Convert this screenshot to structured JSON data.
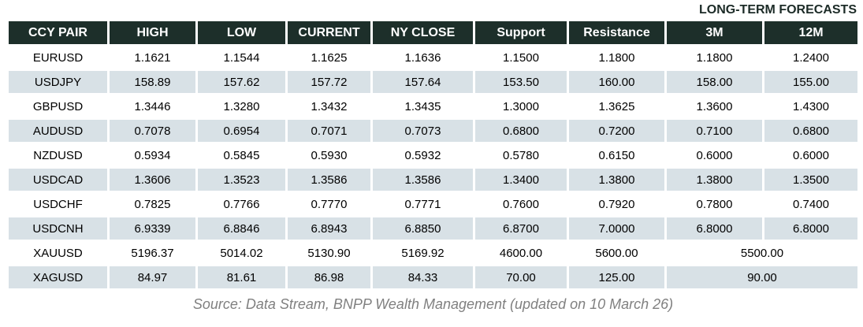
{
  "page": {
    "forecast_heading": "LONG-TERM FORECASTS",
    "source_note": "Source: Data Stream, BNPP Wealth Management (updated on 10 March 26)"
  },
  "colors": {
    "header_bg": "#1d2f2a",
    "alt_row_bg": "#d8e1e6",
    "heading_text": "#1c2b27",
    "source_text": "#808080"
  },
  "chart_data": {
    "type": "table",
    "title": "LONG-TERM FORECASTS",
    "columns": [
      "CCY PAIR",
      "HIGH",
      "LOW",
      "CURRENT",
      "NY CLOSE",
      "Support",
      "Resistance",
      "3M",
      "12M"
    ],
    "rows": [
      {
        "pair": "EURUSD",
        "high": "1.1621",
        "low": "1.1544",
        "current": "1.1625",
        "ny_close": "1.1636",
        "support": "1.1500",
        "resistance": "1.1800",
        "m3": "1.1800",
        "m12": "1.2400"
      },
      {
        "pair": "USDJPY",
        "high": "158.89",
        "low": "157.62",
        "current": "157.72",
        "ny_close": "157.64",
        "support": "153.50",
        "resistance": "160.00",
        "m3": "158.00",
        "m12": "155.00"
      },
      {
        "pair": "GBPUSD",
        "high": "1.3446",
        "low": "1.3280",
        "current": "1.3432",
        "ny_close": "1.3435",
        "support": "1.3000",
        "resistance": "1.3625",
        "m3": "1.3600",
        "m12": "1.4300"
      },
      {
        "pair": "AUDUSD",
        "high": "0.7078",
        "low": "0.6954",
        "current": "0.7071",
        "ny_close": "0.7073",
        "support": "0.6800",
        "resistance": "0.7200",
        "m3": "0.7100",
        "m12": "0.6800"
      },
      {
        "pair": "NZDUSD",
        "high": "0.5934",
        "low": "0.5845",
        "current": "0.5930",
        "ny_close": "0.5932",
        "support": "0.5780",
        "resistance": "0.6150",
        "m3": "0.6000",
        "m12": "0.6000"
      },
      {
        "pair": "USDCAD",
        "high": "1.3606",
        "low": "1.3523",
        "current": "1.3586",
        "ny_close": "1.3586",
        "support": "1.3400",
        "resistance": "1.3800",
        "m3": "1.3800",
        "m12": "1.3500"
      },
      {
        "pair": "USDCHF",
        "high": "0.7825",
        "low": "0.7766",
        "current": "0.7770",
        "ny_close": "0.7771",
        "support": "0.7600",
        "resistance": "0.7920",
        "m3": "0.7800",
        "m12": "0.7400"
      },
      {
        "pair": "USDCNH",
        "high": "6.9339",
        "low": "6.8846",
        "current": "6.8943",
        "ny_close": "6.8850",
        "support": "6.8700",
        "resistance": "7.0000",
        "m3": "6.8000",
        "m12": "6.8000"
      },
      {
        "pair": "XAUUSD",
        "high": "5196.37",
        "low": "5014.02",
        "current": "5130.90",
        "ny_close": "5169.92",
        "support": "4600.00",
        "resistance": "5600.00",
        "forecast_merged": "5500.00"
      },
      {
        "pair": "XAGUSD",
        "high": "84.97",
        "low": "81.61",
        "current": "86.98",
        "ny_close": "84.33",
        "support": "70.00",
        "resistance": "125.00",
        "forecast_merged": "90.00"
      }
    ],
    "layout": {
      "alternating_row_shading": true,
      "merged_forecast_rows": [
        "XAUUSD",
        "XAGUSD"
      ]
    }
  }
}
